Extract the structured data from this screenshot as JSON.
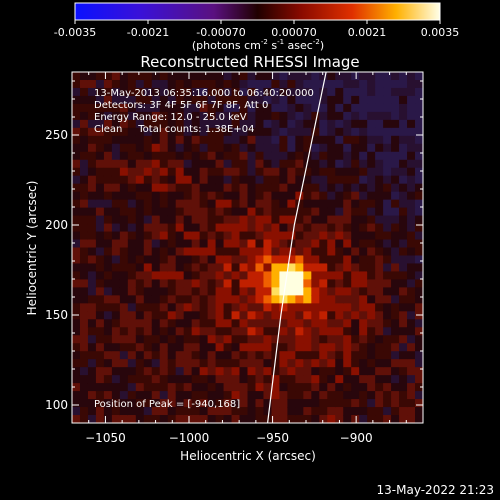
{
  "colorbar": {
    "ticks": [
      "-0.0035",
      "-0.0021",
      "-0.00070",
      "0.00070",
      "0.0021",
      "0.0035"
    ],
    "units": "(photons cm",
    "units_exp1": "-2",
    "units_mid": " s",
    "units_exp2": "-1",
    "units_mid2": " asec",
    "units_exp3": "-2",
    "units_end": ")",
    "range": [
      -0.0035,
      0.0035
    ]
  },
  "chart_data": {
    "type": "heatmap",
    "title": "Reconstructed RHESSI Image",
    "xlabel": "Heliocentric X (arcsec)",
    "ylabel": "Heliocentric Y (arcsec)",
    "xlim": [
      -1070,
      -860
    ],
    "ylim": [
      90,
      285
    ],
    "xticks": [
      -1050,
      -1000,
      -950,
      -900
    ],
    "yticks": [
      100,
      150,
      200,
      250
    ],
    "info_lines": [
      "13-May-2013 06:35:16.000 to 06:40:20.000",
      "Detectors: 3F 4F 5F 6F 7F 8F, Att 0",
      "Energy Range: 12.0 - 25.0 keV",
      "Clean     Total counts: 1.38E+04"
    ],
    "peak_label": "Position of Peak = [-940,168]",
    "peak": {
      "x": -940,
      "y": 168
    },
    "limb": [
      [
        -953,
        90
      ],
      [
        -945,
        150
      ],
      [
        -937,
        200
      ],
      [
        -928,
        240
      ],
      [
        -918,
        285
      ]
    ]
  },
  "footer": {
    "timestamp": "13-May-2022 21:23"
  }
}
